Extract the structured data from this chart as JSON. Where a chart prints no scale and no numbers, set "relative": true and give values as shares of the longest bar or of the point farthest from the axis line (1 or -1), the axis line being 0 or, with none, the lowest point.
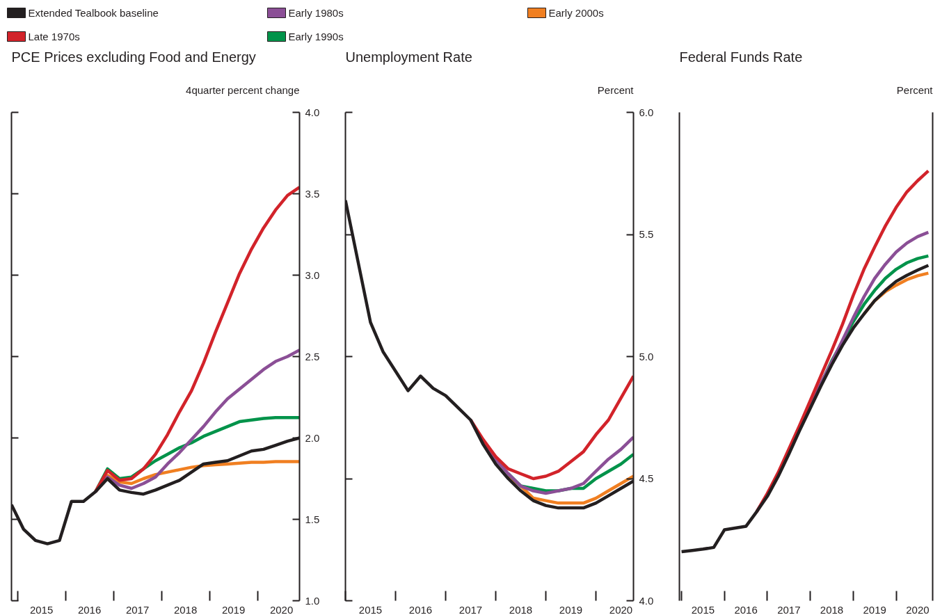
{
  "chart_data": [
    {
      "type": "line",
      "title": "PCE Prices excluding Food and Energy",
      "ylabel": "4quarter percent change",
      "legend": "top",
      "xlim": [
        2014.875,
        2020.875
      ],
      "xticks": [
        {
          "value": 2015,
          "label": null
        },
        {
          "value": 2015.5,
          "label": "2015"
        },
        {
          "value": 2016,
          "label": null
        },
        {
          "value": 2016.5,
          "label": "2016"
        },
        {
          "value": 2017,
          "label": null
        },
        {
          "value": 2017.5,
          "label": "2017"
        },
        {
          "value": 2018,
          "label": null
        },
        {
          "value": 2018.5,
          "label": "2018"
        },
        {
          "value": 2019,
          "label": null
        },
        {
          "value": 2019.5,
          "label": "2019"
        },
        {
          "value": 2020,
          "label": null
        },
        {
          "value": 2020.5,
          "label": "2020"
        }
      ],
      "ylim": [
        1.0,
        4.0
      ],
      "yticks": [
        {
          "value": 1.0,
          "label": "1.0"
        },
        {
          "value": 1.5,
          "label": "1.5"
        },
        {
          "value": 2.0,
          "label": "2.0"
        },
        {
          "value": 2.5,
          "label": "2.5"
        },
        {
          "value": 3.0,
          "label": "3.0"
        },
        {
          "value": 3.5,
          "label": "3.5"
        },
        {
          "value": 4.0,
          "label": "4.0"
        }
      ],
      "series": [
        {
          "name": "Extended Tealbook baseline",
          "color": "#231f20",
          "x": [
            2014.875,
            2015.125,
            2015.375,
            2015.625,
            2015.875,
            2016.125,
            2016.375,
            2016.625,
            2016.875,
            2017.125,
            2017.375,
            2017.625,
            2017.875,
            2018.125,
            2018.375,
            2018.625,
            2018.875,
            2019.125,
            2019.375,
            2019.625,
            2019.875,
            2020.125,
            2020.375,
            2020.625,
            2020.875
          ],
          "values": [
            1.59,
            1.44,
            1.37,
            1.35,
            1.37,
            1.61,
            1.61,
            1.67,
            1.75,
            1.68,
            1.665,
            1.655,
            1.68,
            1.71,
            1.74,
            1.79,
            1.84,
            1.85,
            1.86,
            1.89,
            1.92,
            1.93,
            1.955,
            1.98,
            2.0
          ]
        },
        {
          "name": "Late 1970s",
          "color": "#d2232a",
          "x": [
            2016.625,
            2016.875,
            2017.125,
            2017.375,
            2017.625,
            2017.875,
            2018.125,
            2018.375,
            2018.625,
            2018.875,
            2019.125,
            2019.375,
            2019.625,
            2019.875,
            2020.125,
            2020.375,
            2020.625,
            2020.875
          ],
          "values": [
            1.67,
            1.8,
            1.74,
            1.75,
            1.81,
            1.9,
            2.02,
            2.16,
            2.29,
            2.46,
            2.65,
            2.83,
            3.01,
            3.16,
            3.29,
            3.4,
            3.49,
            3.54
          ]
        },
        {
          "name": "Early 1980s",
          "color": "#8b4f96",
          "x": [
            2016.625,
            2016.875,
            2017.125,
            2017.375,
            2017.625,
            2017.875,
            2018.125,
            2018.375,
            2018.625,
            2018.875,
            2019.125,
            2019.375,
            2019.625,
            2019.875,
            2020.125,
            2020.375,
            2020.625,
            2020.875
          ],
          "values": [
            1.67,
            1.76,
            1.71,
            1.69,
            1.72,
            1.76,
            1.84,
            1.91,
            1.99,
            2.07,
            2.16,
            2.24,
            2.3,
            2.36,
            2.42,
            2.47,
            2.5,
            2.54
          ]
        },
        {
          "name": "Early 1990s",
          "color": "#00934a",
          "x": [
            2016.625,
            2016.875,
            2017.125,
            2017.375,
            2017.625,
            2017.875,
            2018.125,
            2018.375,
            2018.625,
            2018.875,
            2019.125,
            2019.375,
            2019.625,
            2019.875,
            2020.125,
            2020.375,
            2020.625,
            2020.875
          ],
          "values": [
            1.67,
            1.81,
            1.75,
            1.76,
            1.81,
            1.86,
            1.9,
            1.94,
            1.97,
            2.01,
            2.04,
            2.07,
            2.1,
            2.11,
            2.12,
            2.125,
            2.125,
            2.125
          ]
        },
        {
          "name": "Early 2000s",
          "color": "#f07f21",
          "x": [
            2016.625,
            2016.875,
            2017.125,
            2017.375,
            2017.625,
            2017.875,
            2018.125,
            2018.375,
            2018.625,
            2018.875,
            2019.125,
            2019.375,
            2019.625,
            2019.875,
            2020.125,
            2020.375,
            2020.625,
            2020.875
          ],
          "values": [
            1.67,
            1.77,
            1.73,
            1.72,
            1.75,
            1.775,
            1.79,
            1.805,
            1.82,
            1.83,
            1.835,
            1.84,
            1.845,
            1.85,
            1.85,
            1.855,
            1.855,
            1.855
          ]
        }
      ]
    },
    {
      "type": "line",
      "title": "Unemployment Rate",
      "ylabel": "Percent",
      "xlim": [
        2015.0,
        2020.75
      ],
      "xticks": [
        {
          "value": 2015,
          "label": null
        },
        {
          "value": 2015.5,
          "label": "2015"
        },
        {
          "value": 2016,
          "label": null
        },
        {
          "value": 2016.5,
          "label": "2016"
        },
        {
          "value": 2017,
          "label": null
        },
        {
          "value": 2017.5,
          "label": "2017"
        },
        {
          "value": 2018,
          "label": null
        },
        {
          "value": 2018.5,
          "label": "2018"
        },
        {
          "value": 2019,
          "label": null
        },
        {
          "value": 2019.5,
          "label": "2019"
        },
        {
          "value": 2020,
          "label": null
        },
        {
          "value": 2020.5,
          "label": "2020"
        }
      ],
      "ylim": [
        4.0,
        6.0
      ],
      "yticks": [
        {
          "value": 4.0,
          "label": "4.0"
        },
        {
          "value": 4.5,
          "label": "4.5"
        },
        {
          "value": 5.0,
          "label": "5.0"
        },
        {
          "value": 5.5,
          "label": "5.5"
        },
        {
          "value": 6.0,
          "label": "6.0"
        }
      ],
      "series": [
        {
          "color": "#231f20",
          "x": [
            2015.0,
            2015.25,
            2015.5,
            2015.75,
            2016.0,
            2016.25,
            2016.5,
            2016.75,
            2017.0,
            2017.25,
            2017.5,
            2017.75,
            2018.0,
            2018.25,
            2018.5,
            2018.75,
            2019.0,
            2019.25,
            2019.5,
            2019.75,
            2020.0,
            2020.25,
            2020.5,
            2020.75
          ],
          "values": [
            5.64,
            5.39,
            5.14,
            5.02,
            4.94,
            4.86,
            4.92,
            4.87,
            4.84,
            4.79,
            4.74,
            4.64,
            4.56,
            4.5,
            4.45,
            4.41,
            4.39,
            4.38,
            4.38,
            4.38,
            4.4,
            4.43,
            4.46,
            4.49
          ]
        },
        {
          "color": "#d2232a",
          "x": [
            2017.5,
            2017.75,
            2018.0,
            2018.25,
            2018.5,
            2018.75,
            2019.0,
            2019.25,
            2019.5,
            2019.75,
            2020.0,
            2020.25,
            2020.5,
            2020.75
          ],
          "values": [
            4.74,
            4.66,
            4.59,
            4.54,
            4.52,
            4.5,
            4.51,
            4.53,
            4.57,
            4.61,
            4.68,
            4.74,
            4.83,
            4.92
          ]
        },
        {
          "color": "#8b4f96",
          "x": [
            2017.5,
            2017.75,
            2018.0,
            2018.25,
            2018.5,
            2018.75,
            2019.0,
            2019.25,
            2019.5,
            2019.75,
            2020.0,
            2020.25,
            2020.5,
            2020.75
          ],
          "values": [
            4.74,
            4.65,
            4.58,
            4.52,
            4.47,
            4.45,
            4.44,
            4.45,
            4.46,
            4.48,
            4.53,
            4.58,
            4.62,
            4.67
          ]
        },
        {
          "color": "#00934a",
          "x": [
            2018.25,
            2018.5,
            2018.75,
            2019.0,
            2019.25,
            2019.5,
            2019.75,
            2020.0,
            2020.25,
            2020.5,
            2020.75
          ],
          "values": [
            4.52,
            4.47,
            4.46,
            4.45,
            4.45,
            4.46,
            4.46,
            4.5,
            4.53,
            4.56,
            4.6
          ]
        },
        {
          "color": "#f07f21",
          "x": [
            2018.25,
            2018.5,
            2018.75,
            2019.0,
            2019.25,
            2019.5,
            2019.75,
            2020.0,
            2020.25,
            2020.5,
            2020.75
          ],
          "values": [
            4.51,
            4.47,
            4.42,
            4.41,
            4.4,
            4.4,
            4.4,
            4.42,
            4.45,
            4.48,
            4.51
          ]
        }
      ]
    },
    {
      "type": "line",
      "title": "Federal Funds Rate",
      "ylabel": "Percent",
      "relative": true,
      "xlim": [
        2014.95,
        2020.85
      ],
      "xticks": [
        {
          "value": 2015,
          "label": null
        },
        {
          "value": 2015.5,
          "label": "2015"
        },
        {
          "value": 2016,
          "label": null
        },
        {
          "value": 2016.5,
          "label": "2016"
        },
        {
          "value": 2017,
          "label": null
        },
        {
          "value": 2017.5,
          "label": "2017"
        },
        {
          "value": 2018,
          "label": null
        },
        {
          "value": 2018.5,
          "label": "2018"
        },
        {
          "value": 2019,
          "label": null
        },
        {
          "value": 2019.5,
          "label": "2019"
        },
        {
          "value": 2020,
          "label": null
        },
        {
          "value": 2020.5,
          "label": "2020"
        }
      ],
      "series": [
        {
          "color": "#231f20",
          "x": [
            2015.0,
            2015.25,
            2015.5,
            2015.75,
            2016.0,
            2016.25,
            2016.5,
            2016.75,
            2017.0,
            2017.25,
            2017.5,
            2017.75,
            2018.0,
            2018.25,
            2018.5,
            2018.75,
            2019.0,
            2019.25,
            2019.5,
            2019.75,
            2020.0,
            2020.25,
            2020.5,
            2020.75
          ],
          "values": [
            0.114,
            0.117,
            0.12,
            0.124,
            0.165,
            0.169,
            0.173,
            0.207,
            0.243,
            0.289,
            0.341,
            0.396,
            0.448,
            0.5,
            0.549,
            0.594,
            0.634,
            0.667,
            0.698,
            0.722,
            0.743,
            0.757,
            0.769,
            0.78
          ]
        },
        {
          "color": "#d2232a",
          "x": [
            2016.75,
            2017.0,
            2017.25,
            2017.5,
            2017.75,
            2018.0,
            2018.25,
            2018.5,
            2018.75,
            2019.0,
            2019.25,
            2019.5,
            2019.75,
            2020.0,
            2020.25,
            2020.5,
            2020.75
          ],
          "values": [
            0.207,
            0.25,
            0.298,
            0.353,
            0.408,
            0.466,
            0.524,
            0.582,
            0.643,
            0.71,
            0.771,
            0.823,
            0.872,
            0.915,
            0.951,
            0.977,
            1.0
          ]
        },
        {
          "color": "#8b4f96",
          "x": [
            2016.75,
            2017.0,
            2017.25,
            2017.5,
            2017.75,
            2018.0,
            2018.25,
            2018.5,
            2018.75,
            2019.0,
            2019.25,
            2019.5,
            2019.75,
            2020.0,
            2020.25,
            2020.5,
            2020.75
          ],
          "values": [
            0.207,
            0.248,
            0.295,
            0.349,
            0.403,
            0.458,
            0.506,
            0.555,
            0.606,
            0.658,
            0.707,
            0.75,
            0.783,
            0.811,
            0.832,
            0.847,
            0.857
          ]
        },
        {
          "color": "#00934a",
          "x": [
            2018.25,
            2018.5,
            2018.75,
            2019.0,
            2019.25,
            2019.5,
            2019.75,
            2020.0,
            2020.25,
            2020.5,
            2020.75
          ],
          "values": [
            0.505,
            0.558,
            0.603,
            0.649,
            0.689,
            0.722,
            0.75,
            0.771,
            0.786,
            0.796,
            0.802
          ]
        },
        {
          "color": "#f07f21",
          "x": [
            2019.25,
            2019.5,
            2019.75,
            2020.0,
            2020.25,
            2020.5,
            2020.75
          ],
          "values": [
            0.667,
            0.698,
            0.719,
            0.734,
            0.747,
            0.756,
            0.762
          ]
        }
      ]
    }
  ]
}
